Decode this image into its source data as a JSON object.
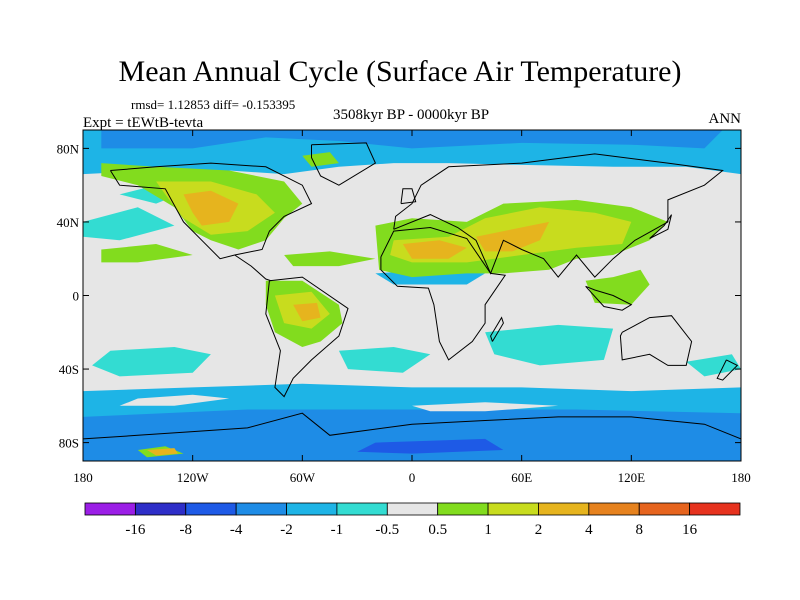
{
  "chart_data": {
    "type": "heatmap",
    "title": "Mean Annual Cycle (Surface Air Temperature)",
    "stats_line": "rmsd= 1.12853 diff= -0.153395",
    "left_label": "Expt = tEWtB-tevta",
    "center_label": "3508kyr BP - 0000kyr BP",
    "right_label": "ANN",
    "x_ticks": [
      "180",
      "120W",
      "60W",
      "0",
      "60E",
      "120E",
      "180"
    ],
    "x_tick_values": [
      -180,
      -120,
      -60,
      0,
      60,
      120,
      180
    ],
    "y_ticks": [
      "80N",
      "40N",
      "0",
      "40S",
      "80S"
    ],
    "y_tick_values": [
      80,
      40,
      0,
      -40,
      -80
    ],
    "xlim": [
      -180,
      180
    ],
    "ylim": [
      -90,
      90
    ],
    "colorbar": {
      "labels": [
        "-16",
        "-8",
        "-4",
        "-2",
        "-1",
        "-0.5",
        "0.5",
        "1",
        "2",
        "4",
        "8",
        "16"
      ],
      "colors": [
        "#9B1EE6",
        "#2E2EC8",
        "#1E5AE6",
        "#1E8CE6",
        "#1EB4E6",
        "#33DCD2",
        "#E6E6E6",
        "#82DC1E",
        "#C8DC1E",
        "#E6B41E",
        "#E6821E",
        "#E6641E",
        "#E6321E"
      ]
    }
  }
}
